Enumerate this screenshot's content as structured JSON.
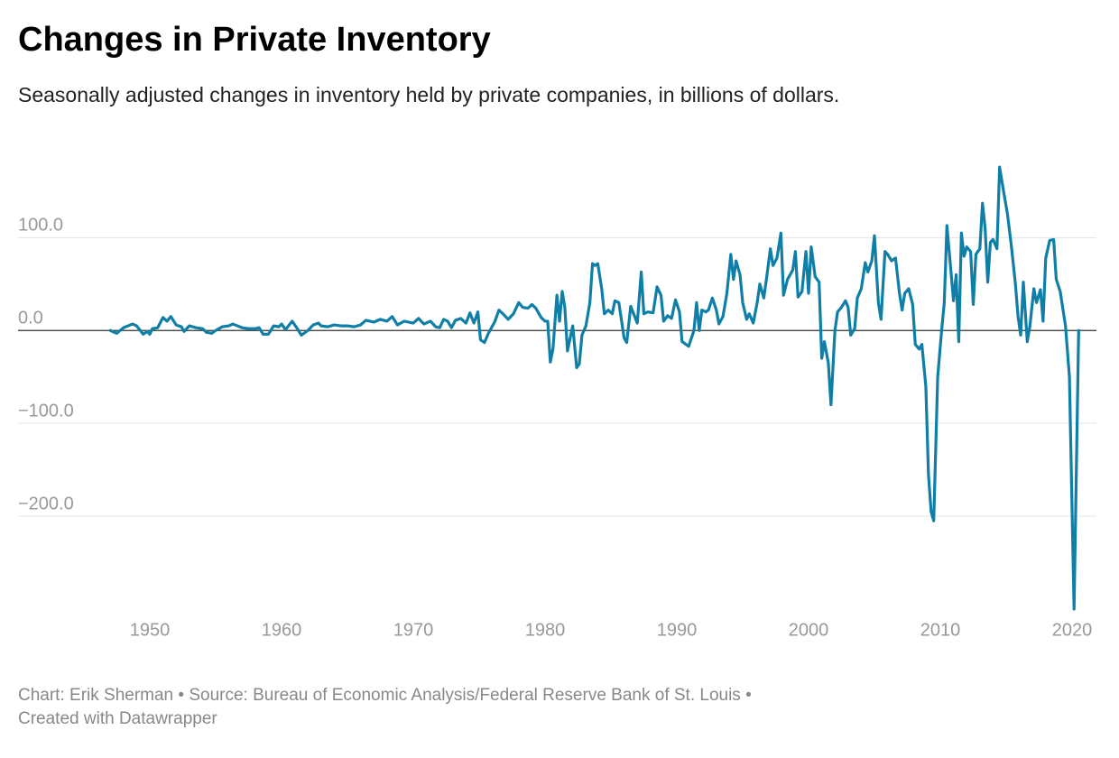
{
  "chart_data": {
    "type": "line",
    "title": "Changes in Private Inventory",
    "subtitle": "Seasonally adjusted changes in inventory held by private companies, in billions of dollars.",
    "footer": [
      "Chart: Erik Sherman • Source: Bureau of Economic Analysis/Federal Reserve Bank of St. Louis •",
      "Created with Datawrapper"
    ],
    "x": [
      1947,
      1947.5,
      1948,
      1948.7,
      1949,
      1949.5,
      1949.8,
      1950,
      1950.2,
      1950.6,
      1951,
      1951.3,
      1951.6,
      1952,
      1952.4,
      1952.6,
      1953,
      1953.5,
      1954,
      1954.3,
      1954.7,
      1955,
      1955.5,
      1956,
      1956.3,
      1957,
      1957.5,
      1958,
      1958.3,
      1958.6,
      1959,
      1959.4,
      1959.8,
      1960,
      1960.3,
      1960.8,
      1961.2,
      1961.5,
      1962,
      1962.4,
      1962.8,
      1963,
      1963.5,
      1964,
      1964.5,
      1965,
      1965.5,
      1966,
      1966.4,
      1967,
      1967.5,
      1968,
      1968.4,
      1968.8,
      1969.3,
      1970,
      1970.4,
      1970.8,
      1971.3,
      1971.7,
      1972,
      1972.3,
      1972.6,
      1972.9,
      1973.2,
      1973.6,
      1974,
      1974.3,
      1974.6,
      1974.9,
      1975.1,
      1975.4,
      1975.7,
      1976.2,
      1976.5,
      1976.8,
      1977.2,
      1977.6,
      1978,
      1978.3,
      1978.7,
      1979,
      1979.3,
      1979.7,
      1980,
      1980.2,
      1980.4,
      1980.6,
      1980.9,
      1981.1,
      1981.3,
      1981.5,
      1981.7,
      1982.1,
      1982.4,
      1982.6,
      1982.8,
      1983.1,
      1983.4,
      1983.6,
      1983.8,
      1984,
      1984.3,
      1984.5,
      1984.8,
      1985.1,
      1985.3,
      1985.6,
      1986,
      1986.2,
      1986.5,
      1987,
      1987.3,
      1987.5,
      1987.8,
      1988.2,
      1988.5,
      1988.8,
      1989,
      1989.3,
      1989.6,
      1989.9,
      1990.2,
      1990.4,
      1990.7,
      1990.9,
      1991.3,
      1991.5,
      1991.7,
      1991.9,
      1992.2,
      1992.4,
      1992.7,
      1993,
      1993.2,
      1993.5,
      1993.8,
      1994.1,
      1994.3,
      1994.5,
      1994.8,
      1995,
      1995.3,
      1995.5,
      1995.8,
      1996.1,
      1996.3,
      1996.6,
      1996.8,
      1997.1,
      1997.3,
      1997.6,
      1997.9,
      1998.1,
      1998.4,
      1998.8,
      1999,
      1999.2,
      1999.5,
      1999.8,
      2000,
      2000.2,
      2000.5,
      2000.8,
      2001,
      2001.2,
      2001.5,
      2001.7,
      2002,
      2002.2,
      2002.5,
      2002.8,
      2003,
      2003.2,
      2003.5,
      2003.7,
      2004,
      2004.3,
      2004.5,
      2004.8,
      2005,
      2005.3,
      2005.5,
      2005.8,
      2006,
      2006.3,
      2006.6,
      2006.9,
      2007.1,
      2007.3,
      2007.6,
      2007.9,
      2008.1,
      2008.4,
      2008.6,
      2008.9,
      2009.1,
      2009.3,
      2009.5,
      2009.8,
      2010.1,
      2010.3,
      2010.5,
      2010.8,
      2011,
      2011.2,
      2011.4,
      2011.6,
      2011.8,
      2012,
      2012.3,
      2012.5,
      2012.7,
      2013,
      2013.2,
      2013.4,
      2013.6,
      2013.8,
      2014,
      2014.3,
      2014.5,
      2014.8,
      2015.1,
      2015.4,
      2015.7,
      2015.9,
      2016.1,
      2016.3,
      2016.6,
      2016.8,
      2017.1,
      2017.3,
      2017.6,
      2017.8,
      2018,
      2018.3,
      2018.6,
      2018.8,
      2019.1,
      2019.5,
      2019.8,
      2020.15,
      2020.5
    ],
    "series": [
      {
        "color": "#0f7fa8",
        "values": [
          0,
          -3,
          3,
          7,
          5,
          -4,
          -1,
          -4,
          2,
          3,
          14,
          10,
          15,
          6,
          4,
          -1,
          5,
          3,
          2,
          -2,
          -3,
          0,
          4,
          5,
          7,
          3,
          2,
          2,
          3,
          -4,
          -4,
          5,
          4,
          7,
          1,
          10,
          2,
          -5,
          0,
          6,
          8,
          5,
          4,
          6,
          5,
          5,
          4,
          6,
          11,
          9,
          12,
          10,
          15,
          6,
          10,
          8,
          13,
          7,
          10,
          4,
          3,
          12,
          10,
          3,
          11,
          13,
          8,
          19,
          8,
          20,
          -10,
          -13,
          -3,
          10,
          22,
          18,
          12,
          18,
          30,
          25,
          24,
          28,
          24,
          14,
          10,
          10,
          -34,
          -20,
          38,
          10,
          42,
          25,
          -22,
          5,
          -40,
          -36,
          -5,
          5,
          30,
          72,
          70,
          72,
          45,
          18,
          22,
          18,
          32,
          30,
          -8,
          -13,
          26,
          8,
          63,
          18,
          20,
          19,
          47,
          38,
          10,
          16,
          13,
          33,
          20,
          -12,
          -15,
          -17,
          0,
          30,
          0,
          22,
          20,
          22,
          35,
          22,
          7,
          15,
          40,
          82,
          55,
          75,
          60,
          30,
          12,
          18,
          8,
          30,
          50,
          35,
          55,
          88,
          70,
          78,
          105,
          38,
          55,
          65,
          85,
          36,
          42,
          85,
          40,
          90,
          58,
          52,
          -30,
          -12,
          -35,
          -80,
          0,
          20,
          25,
          32,
          25,
          -5,
          2,
          35,
          45,
          73,
          63,
          75,
          102,
          30,
          12,
          85,
          82,
          75,
          78,
          40,
          22,
          40,
          45,
          28,
          -15,
          -20,
          -15,
          -60,
          -155,
          -195,
          -205,
          -50,
          0,
          30,
          113,
          65,
          32,
          60,
          -12,
          105,
          80,
          90,
          85,
          28,
          82,
          88,
          137,
          110,
          52,
          95,
          98,
          88,
          176,
          150,
          125,
          90,
          50,
          15,
          -5,
          52,
          -12,
          5,
          45,
          30,
          44,
          10,
          78,
          97,
          98,
          55,
          42,
          5,
          -50,
          -300,
          0
        ]
      }
    ],
    "xlim": [
      1946,
      2022
    ],
    "xticks": [
      1950,
      1960,
      1970,
      1980,
      1990,
      2000,
      2010,
      2020
    ],
    "ylim": [
      -300,
      180
    ],
    "yticks": [
      {
        "value": -200,
        "label": "−200.0"
      },
      {
        "value": -100,
        "label": "−100.0"
      },
      {
        "value": 0,
        "label": "0.0"
      },
      {
        "value": 100,
        "label": "100.0"
      }
    ],
    "grid": true
  }
}
